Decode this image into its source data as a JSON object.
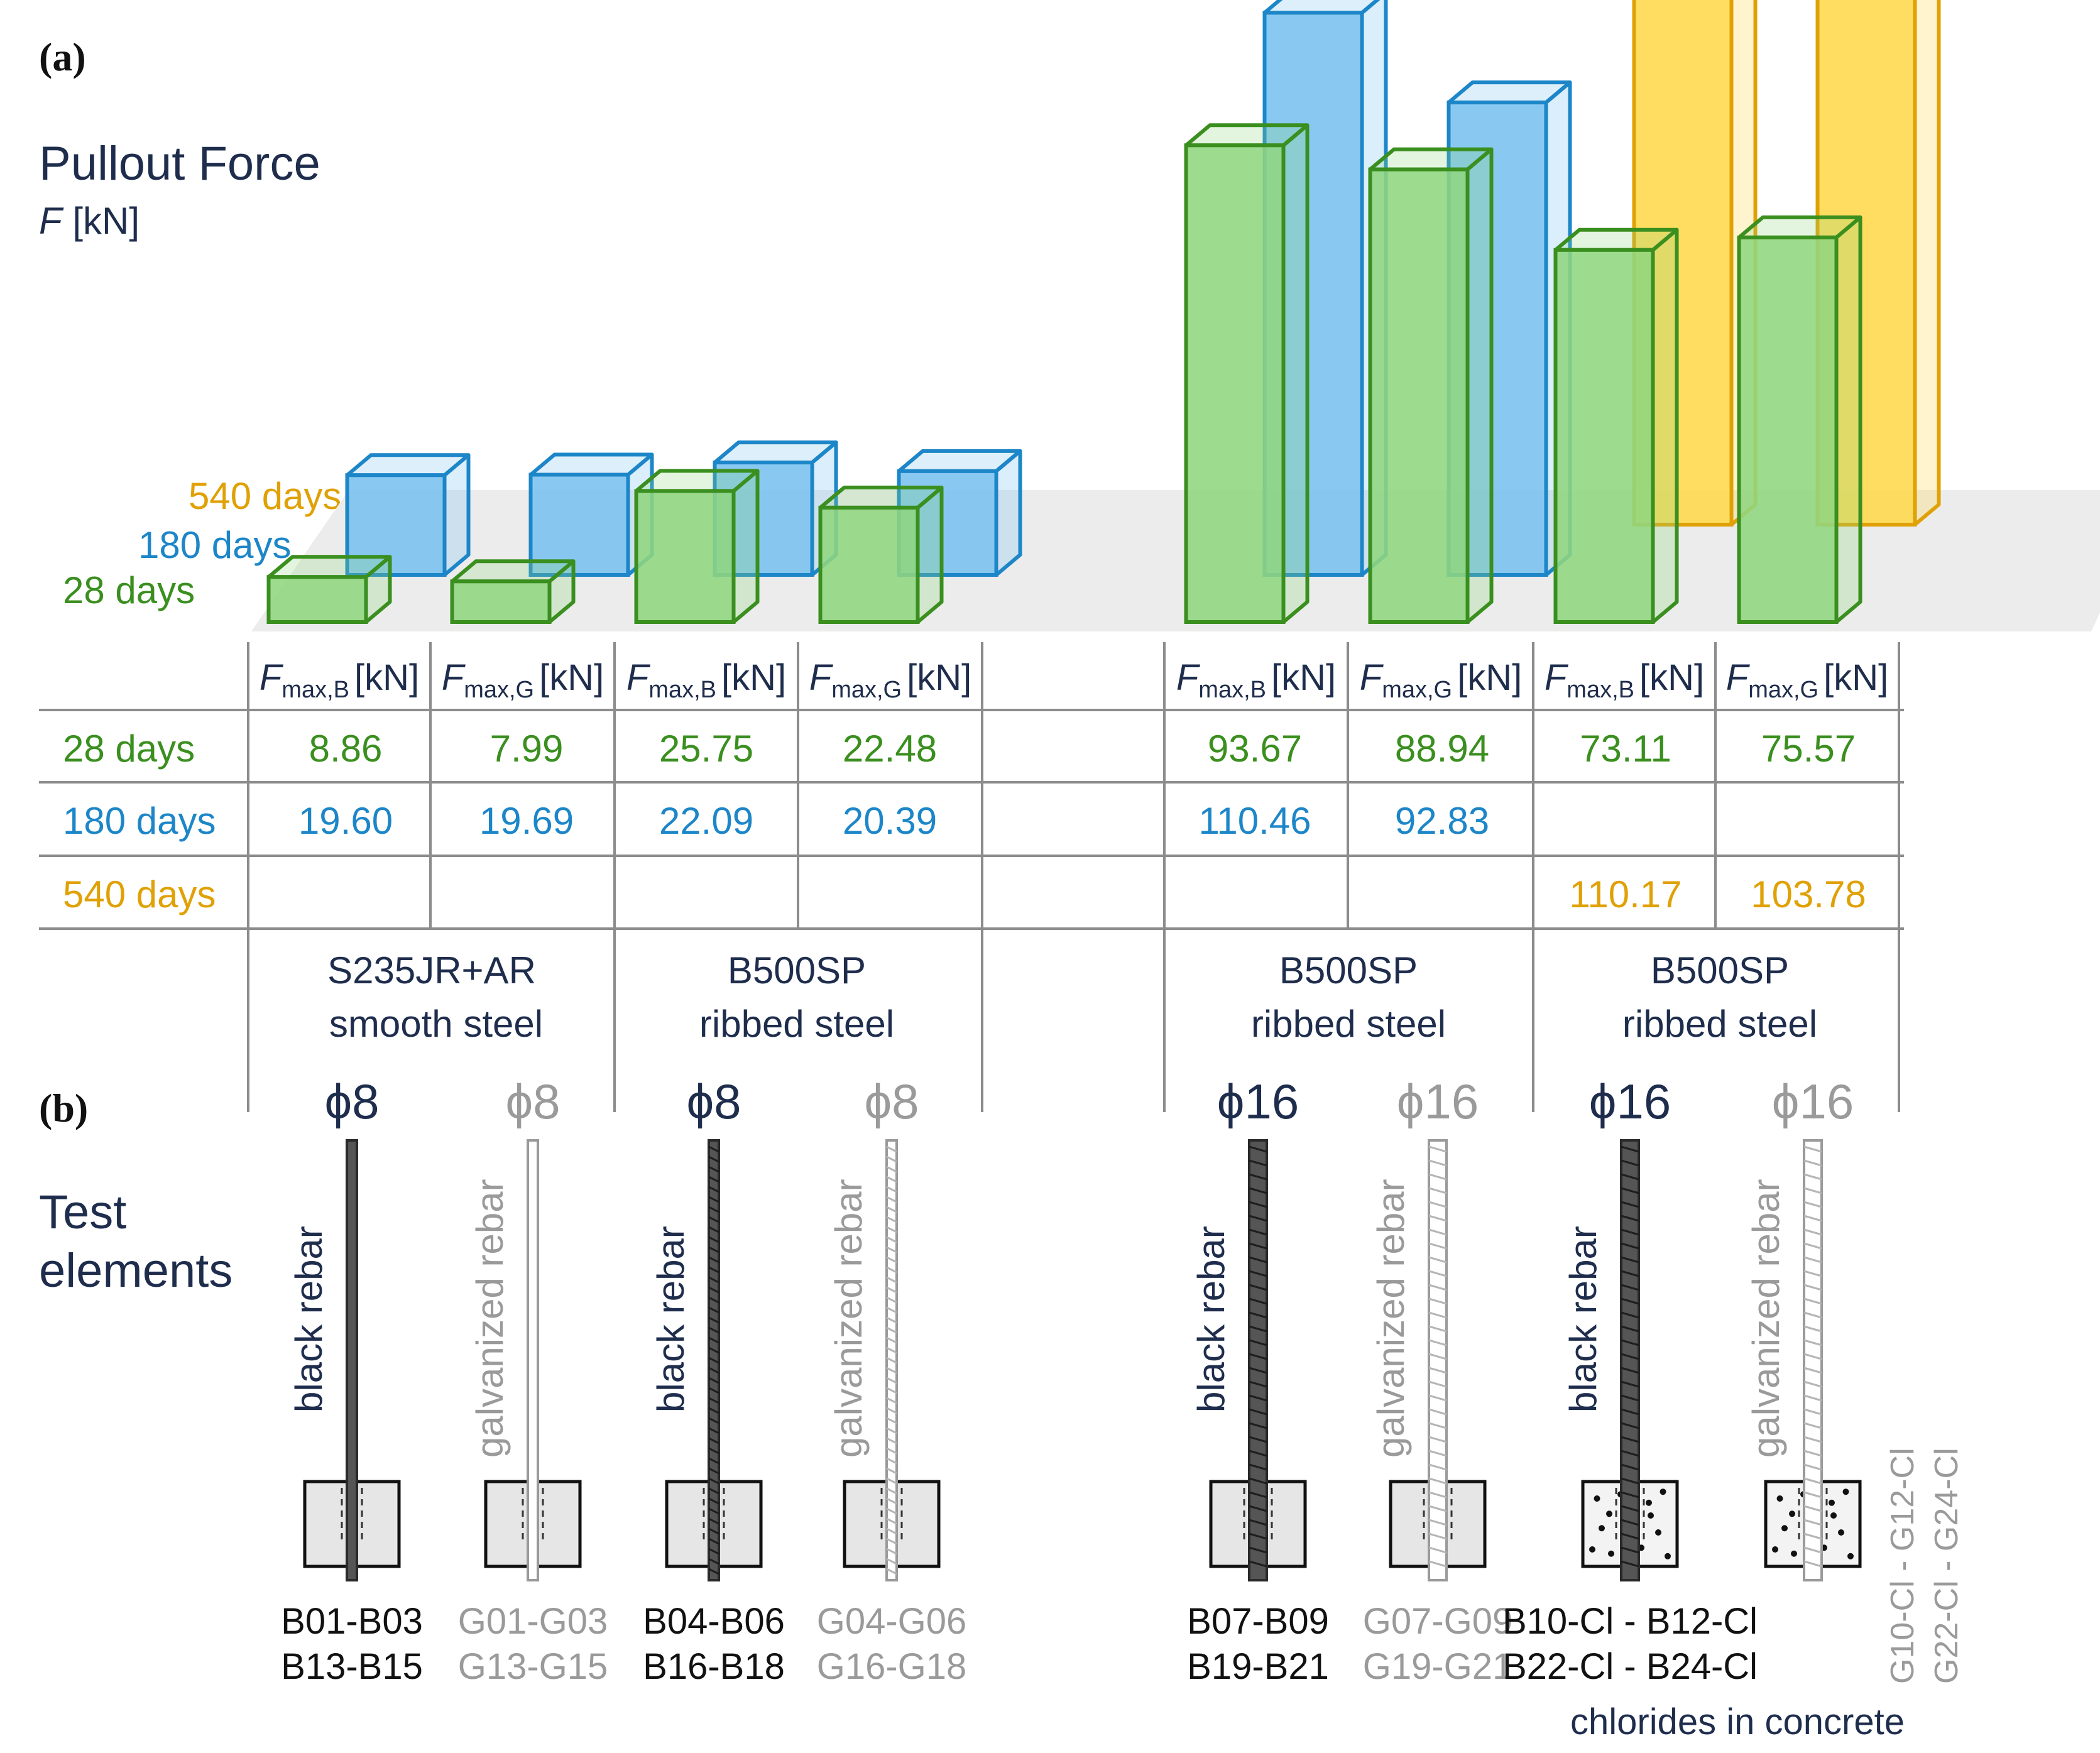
{
  "colors": {
    "d28": "#3a8f1f",
    "d28_fill": "#8fd67f",
    "d180": "#1c86c8",
    "d180_fill": "#79c1ef",
    "d540": "#e0a106",
    "d540_fill": "#ffd84a",
    "label_dark": "#1f2d4d",
    "label_gray": "#9a9a9a",
    "rule": "#8c8c8c",
    "platform": "#ececec"
  },
  "panels": {
    "a": "(a)",
    "b": "(b)"
  },
  "axis": {
    "title": "Pullout Force",
    "sym": "F",
    "unit": " [kN]"
  },
  "legend": [
    {
      "key": "d540",
      "label": "540 days"
    },
    {
      "key": "d180",
      "label": "180 days"
    },
    {
      "key": "d28",
      "label": "28 days"
    }
  ],
  "chart_data": {
    "type": "bar",
    "title": "Pullout Force",
    "ylabel": "F [kN]",
    "categories": [
      "S235JR+AR smooth steel ϕ8 Fmax,B",
      "S235JR+AR smooth steel ϕ8 Fmax,G",
      "B500SP ribbed steel ϕ8 Fmax,B",
      "B500SP ribbed steel ϕ8 Fmax,G",
      "B500SP ribbed steel ϕ16 Fmax,B",
      "B500SP ribbed steel ϕ16 Fmax,G",
      "B500SP ribbed steel ϕ16 chlorides Fmax,B",
      "B500SP ribbed steel ϕ16 chlorides Fmax,G"
    ],
    "series": [
      {
        "name": "28 days",
        "key": "d28",
        "values": [
          8.86,
          7.99,
          25.75,
          22.48,
          93.67,
          88.94,
          73.11,
          75.57
        ]
      },
      {
        "name": "180 days",
        "key": "d180",
        "values": [
          19.6,
          19.69,
          22.09,
          20.39,
          110.46,
          92.83,
          null,
          null
        ]
      },
      {
        "name": "540 days",
        "key": "d540",
        "values": [
          null,
          null,
          null,
          null,
          null,
          null,
          110.17,
          103.78
        ]
      }
    ]
  },
  "table": {
    "headers": [
      {
        "sym": "F",
        "sub": "max,B",
        "unit": "[kN]"
      },
      {
        "sym": "F",
        "sub": "max,G",
        "unit": "[kN]"
      },
      {
        "sym": "F",
        "sub": "max,B",
        "unit": "[kN]"
      },
      {
        "sym": "F",
        "sub": "max,G",
        "unit": "[kN]"
      },
      {
        "sym": "F",
        "sub": "max,B",
        "unit": "[kN]"
      },
      {
        "sym": "F",
        "sub": "max,G",
        "unit": "[kN]"
      },
      {
        "sym": "F",
        "sub": "max,B",
        "unit": "[kN]"
      },
      {
        "sym": "F",
        "sub": "max,G",
        "unit": "[kN]"
      }
    ],
    "rows": [
      {
        "label": "28 days",
        "key": "d28",
        "cells": [
          "8.86",
          "7.99",
          "25.75",
          "22.48",
          "93.67",
          "88.94",
          "73.11",
          "75.57"
        ]
      },
      {
        "label": "180 days",
        "key": "d180",
        "cells": [
          "19.60",
          "19.69",
          "22.09",
          "20.39",
          "110.46",
          "92.83",
          "",
          ""
        ]
      },
      {
        "label": "540 days",
        "key": "d540",
        "cells": [
          "",
          "",
          "",
          "",
          "",
          "",
          "110.17",
          "103.78"
        ]
      }
    ],
    "groups": [
      {
        "line1": "S235JR+AR",
        "line2": "smooth steel"
      },
      {
        "line1": "B500SP",
        "line2": "ribbed steel"
      },
      {
        "line1": "B500SP",
        "line2": "ribbed steel"
      },
      {
        "line1": "B500SP",
        "line2": "ribbed steel"
      }
    ]
  },
  "test_elements": {
    "title_line1": "Test",
    "title_line2": "elements",
    "chlorides_note": "chlorides in concrete",
    "items": [
      {
        "dia": "ϕ8",
        "label": "black rebar",
        "codes": [
          "B01-B03",
          "B13-B15"
        ],
        "galv": false
      },
      {
        "dia": "ϕ8",
        "label": "galvanized rebar",
        "codes": [
          "G01-G03",
          "G13-G15"
        ],
        "galv": true
      },
      {
        "dia": "ϕ8",
        "label": "black rebar",
        "codes": [
          "B04-B06",
          "B16-B18"
        ],
        "galv": false
      },
      {
        "dia": "ϕ8",
        "label": "galvanized rebar",
        "codes": [
          "G04-G06",
          "G16-G18"
        ],
        "galv": true
      },
      {
        "dia": "ϕ16",
        "label": "black rebar",
        "codes": [
          "B07-B09",
          "B19-B21"
        ],
        "galv": false
      },
      {
        "dia": "ϕ16",
        "label": "galvanized rebar",
        "codes": [
          "G07-G09",
          "G19-G21"
        ],
        "galv": true
      },
      {
        "dia": "ϕ16",
        "label": "black rebar",
        "codes": [
          "B10-Cl - B12-Cl",
          "B22-Cl - B24-Cl"
        ],
        "galv": false
      },
      {
        "dia": "ϕ16",
        "label": "galvanized rebar",
        "codes": [
          "G10-Cl - G12-Cl",
          "G22-Cl - G24-Cl"
        ],
        "galv": true
      }
    ]
  }
}
